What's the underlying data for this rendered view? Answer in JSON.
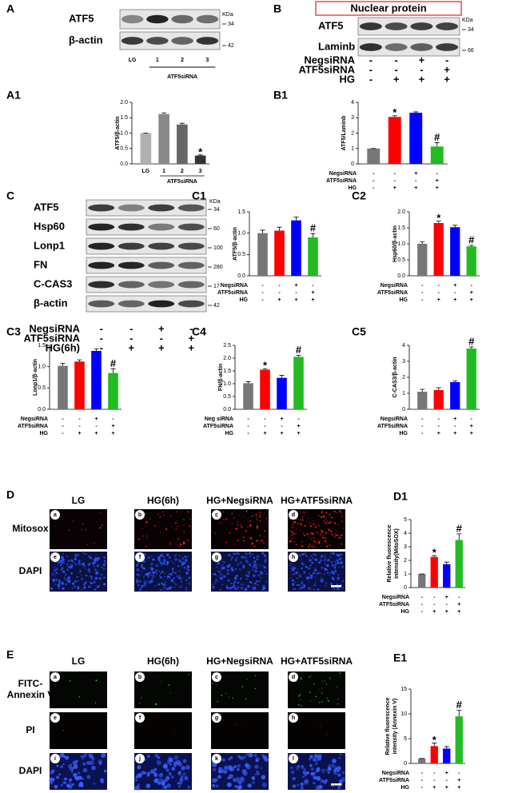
{
  "panel_letters": [
    "A",
    "B",
    "A1",
    "B1",
    "C",
    "C1",
    "C2",
    "C3",
    "C4",
    "C5",
    "D",
    "D1",
    "E",
    "E1"
  ],
  "blot_A": {
    "proteins": [
      "ATF5",
      "β-actin"
    ],
    "kda_unit": "KDa",
    "kda": [
      "34",
      "42"
    ],
    "lanes": [
      "LG",
      "1",
      "2",
      "3"
    ],
    "group": "ATF5siRNA"
  },
  "blot_B": {
    "title": "Nuclear protein",
    "proteins": [
      "ATF5",
      "Laminb"
    ],
    "kda_unit": "KDa",
    "kda": [
      "34",
      "66"
    ],
    "conditions": [
      {
        "name": "NegsiRNA",
        "marks": [
          "-",
          "-",
          "+",
          "-"
        ]
      },
      {
        "name": "ATF5siRNA",
        "marks": [
          "-",
          "-",
          "-",
          "+"
        ]
      },
      {
        "name": "HG",
        "marks": [
          "-",
          "+",
          "+",
          "+"
        ]
      }
    ]
  },
  "blot_C": {
    "proteins": [
      "ATF5",
      "Hsp60",
      "Lonp1",
      "FN",
      "C-CAS3",
      "β-actin"
    ],
    "kda_unit": "KDa",
    "kda": [
      "34",
      "60",
      "100",
      "280",
      "17",
      "42"
    ],
    "conditions": [
      {
        "name": "NegsiRNA",
        "marks": [
          "-",
          "-",
          "+",
          "-"
        ]
      },
      {
        "name": "ATF5siRNA",
        "marks": [
          "-",
          "-",
          "-",
          "+"
        ]
      },
      {
        "name": "HG(6h)",
        "marks": [
          "-",
          "+",
          "+",
          "+"
        ]
      }
    ]
  },
  "micro_D": {
    "columns": [
      "LG",
      "HG(6h)",
      "HG+NegsiRNA",
      "HG+ATF5siRNA"
    ],
    "rows": [
      [
        "Mitosox"
      ],
      [
        "DAPI"
      ]
    ],
    "tiles": [
      "a",
      "b",
      "c",
      "d",
      "e",
      "f",
      "g",
      "h"
    ]
  },
  "micro_E": {
    "columns": [
      "LG",
      "HG(6h)",
      "HG+NegsiRNA",
      "HG+ATF5siRNA"
    ],
    "rows": [
      [
        "FITC-",
        "Annexin V"
      ],
      [
        "PI"
      ],
      [
        "DAPI"
      ]
    ],
    "tiles": [
      "a",
      "b",
      "c",
      "d",
      "e",
      "f",
      "g",
      "h",
      "i",
      "j",
      "k",
      "l"
    ]
  },
  "chart_data": [
    {
      "type": "bar",
      "ylabel": [
        "ATF5/β-actin"
      ],
      "categories": [
        "LG",
        "1",
        "2",
        "3"
      ],
      "group": "ATF5siRNA",
      "values": [
        1.0,
        1.62,
        1.28,
        0.27
      ],
      "errors": [
        0,
        0.04,
        0.04,
        0.02
      ],
      "colors": [
        "#b0b0b0",
        "#888888",
        "#666666",
        "#333333"
      ],
      "bar_labels": [
        null,
        null,
        null,
        "*"
      ],
      "ylim": [
        0,
        2
      ],
      "yticks": [
        {
          "value": 0,
          "label": "0.0"
        },
        0.5,
        {
          "value": 1,
          "label": "1.0"
        },
        1.5,
        {
          "value": 2,
          "label": "2.0"
        }
      ]
    },
    {
      "type": "bar",
      "ylabel": [
        "ATF5/Laminb"
      ],
      "conditions": [
        {
          "name": "NegsiRNA",
          "marks": [
            "-",
            "-",
            "+",
            "-"
          ]
        },
        {
          "name": "ATF5siRNA",
          "marks": [
            "-",
            "-",
            "-",
            "+"
          ]
        },
        {
          "name": "HG",
          "marks": [
            "-",
            "+",
            "+",
            "+"
          ]
        }
      ],
      "values": [
        1.0,
        3.05,
        3.32,
        1.13
      ],
      "errors": [
        0,
        0.08,
        0.06,
        0.25
      ],
      "colors": [
        "#777777",
        "#ff0000",
        "#0000ff",
        "#22bb22"
      ],
      "bar_labels": [
        null,
        "*",
        null,
        "#"
      ],
      "ylim": [
        0,
        4
      ],
      "yticks": [
        0,
        1,
        2,
        3,
        4
      ]
    },
    {
      "type": "bar",
      "ylabel": [
        "ATF5/β-actin"
      ],
      "conditions": [
        {
          "name": "NegsiRNA",
          "marks": [
            "-",
            "-",
            "+",
            "-"
          ]
        },
        {
          "name": "ATF5siRNA",
          "marks": [
            "-",
            "-",
            "-",
            "+"
          ]
        },
        {
          "name": "HG",
          "marks": [
            "-",
            "+",
            "+",
            "+"
          ]
        }
      ],
      "values": [
        1.0,
        1.06,
        1.3,
        0.9
      ],
      "errors": [
        0.07,
        0.08,
        0.08,
        0.09
      ],
      "colors": [
        "#777777",
        "#ff0000",
        "#0000ff",
        "#22bb22"
      ],
      "bar_labels": [
        null,
        null,
        null,
        "#"
      ],
      "ylim": [
        0,
        1.5
      ],
      "yticks": [
        {
          "value": 0,
          "label": "0.0"
        },
        0.5,
        {
          "value": 1,
          "label": "1.0"
        },
        1.5
      ]
    },
    {
      "type": "bar",
      "ylabel": [
        "Hsp60/β-actin"
      ],
      "conditions": [
        {
          "name": "NegsiRNA",
          "marks": [
            "-",
            "-",
            "+",
            "-"
          ]
        },
        {
          "name": "ATF5siRNA",
          "marks": [
            "-",
            "-",
            "-",
            "+"
          ]
        },
        {
          "name": "HG",
          "marks": [
            "-",
            "+",
            "+",
            "+"
          ]
        }
      ],
      "values": [
        1.0,
        1.65,
        1.52,
        0.92
      ],
      "errors": [
        0.06,
        0.06,
        0.06,
        0.03
      ],
      "colors": [
        "#777777",
        "#ff0000",
        "#0000ff",
        "#22bb22"
      ],
      "bar_labels": [
        null,
        "*",
        null,
        "#"
      ],
      "ylim": [
        0,
        2
      ],
      "yticks": [
        {
          "value": 0,
          "label": "0.0"
        },
        0.5,
        {
          "value": 1,
          "label": "1.0"
        },
        1.5,
        {
          "value": 2,
          "label": "2.0"
        }
      ]
    },
    {
      "type": "bar",
      "ylabel": [
        "Lonp1/β-actin"
      ],
      "conditions": [
        {
          "name": "NegsiRNA",
          "marks": [
            "-",
            "-",
            "+",
            "-"
          ]
        },
        {
          "name": "ATF5siRNA",
          "marks": [
            "-",
            "-",
            "-",
            "+"
          ]
        },
        {
          "name": "HG",
          "marks": [
            "-",
            "+",
            "+",
            "+"
          ]
        }
      ],
      "values": [
        1.02,
        1.12,
        1.37,
        0.85
      ],
      "errors": [
        0.06,
        0.04,
        0.05,
        0.1
      ],
      "colors": [
        "#777777",
        "#ff0000",
        "#0000ff",
        "#22bb22"
      ],
      "bar_labels": [
        null,
        null,
        null,
        "#"
      ],
      "ylim": [
        0,
        1.5
      ],
      "yticks": [
        {
          "value": 0,
          "label": "0.0"
        },
        0.5,
        {
          "value": 1,
          "label": "1.0"
        },
        1.5
      ]
    },
    {
      "type": "bar",
      "ylabel": [
        "FN/β-actin"
      ],
      "conditions": [
        {
          "name": "Neg siRNA",
          "marks": [
            "-",
            "-",
            "+",
            "-"
          ]
        },
        {
          "name": "ATF5siRNA",
          "marks": [
            "-",
            "-",
            "-",
            "+"
          ]
        },
        {
          "name": "HG",
          "marks": [
            "-",
            "+",
            "+",
            "+"
          ]
        }
      ],
      "values": [
        1.02,
        1.55,
        1.23,
        2.05
      ],
      "errors": [
        0.06,
        0.04,
        0.1,
        0.06
      ],
      "colors": [
        "#777777",
        "#ff0000",
        "#0000ff",
        "#22bb22"
      ],
      "bar_labels": [
        null,
        "*",
        null,
        "#"
      ],
      "ylim": [
        0,
        2.5
      ],
      "yticks": [
        {
          "value": 0,
          "label": "0.0"
        },
        0.5,
        {
          "value": 1,
          "label": "1.0"
        },
        1.5,
        {
          "value": 2,
          "label": "2.0"
        },
        2.5
      ]
    },
    {
      "type": "bar",
      "ylabel": [
        "C-CAS3/β-actin"
      ],
      "conditions": [
        {
          "name": "NegsiRNA",
          "marks": [
            "-",
            "-",
            "+",
            "-"
          ]
        },
        {
          "name": "ATF5siRNA",
          "marks": [
            "-",
            "-",
            "-",
            "+"
          ]
        },
        {
          "name": "HG",
          "marks": [
            "-",
            "+",
            "+",
            "+"
          ]
        }
      ],
      "values": [
        1.1,
        1.2,
        1.7,
        3.8
      ],
      "errors": [
        0.15,
        0.15,
        0.08,
        0.1
      ],
      "colors": [
        "#777777",
        "#ff0000",
        "#0000ff",
        "#22bb22"
      ],
      "bar_labels": [
        null,
        null,
        null,
        "#"
      ],
      "ylim": [
        0,
        4
      ],
      "yticks": [
        0,
        1,
        2,
        3,
        4
      ]
    },
    {
      "type": "bar",
      "ylabel": [
        "Relative fluorescence",
        "intensity(MitoSOX)"
      ],
      "conditions": [
        {
          "name": "NegsiRNA",
          "marks": [
            "-",
            "-",
            "+",
            "-"
          ]
        },
        {
          "name": "ATF5siRNA",
          "marks": [
            "-",
            "-",
            "-",
            "+"
          ]
        },
        {
          "name": "HG",
          "marks": [
            "-",
            "+",
            "+",
            "+"
          ]
        }
      ],
      "values": [
        1.0,
        2.25,
        1.72,
        3.5
      ],
      "errors": [
        0,
        0.1,
        0.15,
        0.45
      ],
      "colors": [
        "#777777",
        "#ff0000",
        "#0000ff",
        "#22bb22"
      ],
      "bar_labels": [
        null,
        "*",
        null,
        "#"
      ],
      "ylim": [
        0,
        5
      ],
      "yticks": [
        0,
        1,
        2,
        3,
        4,
        5
      ]
    },
    {
      "type": "bar",
      "ylabel": [
        "Relative fluorescence",
        "intensity (Annexin V)"
      ],
      "conditions": [
        {
          "name": "NegsiRNA",
          "marks": [
            "-",
            "-",
            "+",
            "-"
          ]
        },
        {
          "name": "ATF5siRNA",
          "marks": [
            "-",
            "-",
            "-",
            "+"
          ]
        },
        {
          "name": "HG",
          "marks": [
            "-",
            "+",
            "+",
            "+"
          ]
        }
      ],
      "values": [
        1.0,
        3.5,
        3.0,
        9.5
      ],
      "errors": [
        0,
        0.6,
        0.4,
        1.2
      ],
      "colors": [
        "#777777",
        "#ff0000",
        "#0000ff",
        "#22bb22"
      ],
      "bar_labels": [
        null,
        "*",
        null,
        "#"
      ],
      "ylim": [
        0,
        15
      ],
      "yticks": [
        0,
        5,
        10,
        15
      ]
    }
  ]
}
